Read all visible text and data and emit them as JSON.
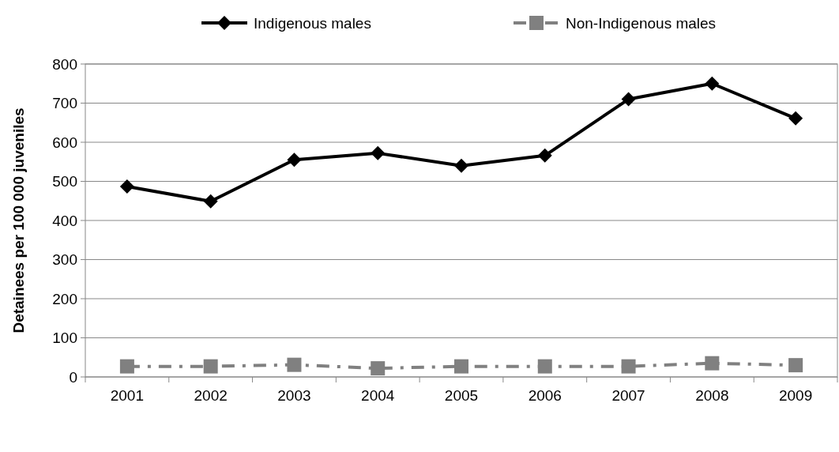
{
  "chart_data": {
    "type": "line",
    "ylabel": "Detainees per 100 000 juveniles",
    "categories": [
      "2001",
      "2002",
      "2003",
      "2004",
      "2005",
      "2006",
      "2007",
      "2008",
      "2009"
    ],
    "series": [
      {
        "name": "Indigenous males",
        "color": "#000000",
        "marker": "diamond",
        "line_style": "solid",
        "values": [
          487,
          449,
          555,
          572,
          540,
          566,
          710,
          750,
          661
        ]
      },
      {
        "name": "Non-Indigenous males",
        "color": "#808080",
        "marker": "square",
        "line_style": "dashed",
        "values": [
          27,
          27,
          31,
          22,
          27,
          27,
          27,
          35,
          30
        ]
      }
    ],
    "ylim": [
      0,
      800
    ],
    "yticks": [
      0,
      100,
      200,
      300,
      400,
      500,
      600,
      700,
      800
    ],
    "grid": "y",
    "legend": "top"
  }
}
